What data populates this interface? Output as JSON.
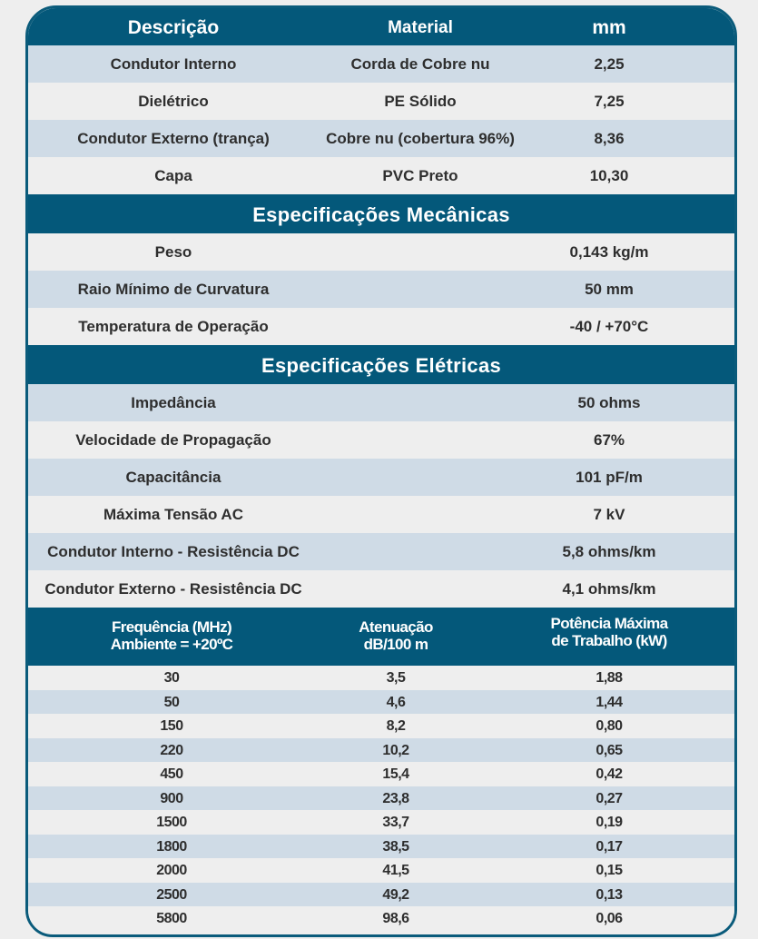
{
  "construction": {
    "headers": [
      "Descrição",
      "Material",
      "mm"
    ],
    "rows": [
      [
        "Condutor Interno",
        "Corda de Cobre nu",
        "2,25"
      ],
      [
        "Dielétrico",
        "PE Sólido",
        "7,25"
      ],
      [
        "Condutor Externo (trança)",
        "Cobre nu (cobertura 96%)",
        "8,36"
      ],
      [
        "Capa",
        "PVC Preto",
        "10,30"
      ]
    ]
  },
  "mechanical": {
    "title": "Especificações Mecânicas",
    "rows": [
      [
        "Peso",
        "0,143 kg/m"
      ],
      [
        "Raio Mínimo de Curvatura",
        "50 mm"
      ],
      [
        "Temperatura de Operação",
        "-40 / +70°C"
      ]
    ]
  },
  "electrical": {
    "title": "Especificações Elétricas",
    "rows": [
      [
        "Impedância",
        "50 ohms"
      ],
      [
        "Velocidade de Propagação",
        "67%"
      ],
      [
        "Capacitância",
        "101 pF/m"
      ],
      [
        "Máxima Tensão AC",
        "7 kV"
      ],
      [
        "Condutor Interno - Resistência DC",
        "5,8 ohms/km"
      ],
      [
        "Condutor Externo - Resistência DC",
        "4,1 ohms/km"
      ]
    ]
  },
  "frequency": {
    "headers": [
      [
        "Frequência (MHz)",
        "Ambiente = +20ºC"
      ],
      [
        "Atenuação",
        "dB/100 m"
      ],
      [
        "Potência Máxima",
        "de Trabalho (kW)"
      ]
    ],
    "rows": [
      [
        "30",
        "3,5",
        "1,88"
      ],
      [
        "50",
        "4,6",
        "1,44"
      ],
      [
        "150",
        "8,2",
        "0,80"
      ],
      [
        "220",
        "10,2",
        "0,65"
      ],
      [
        "450",
        "15,4",
        "0,42"
      ],
      [
        "900",
        "23,8",
        "0,27"
      ],
      [
        "1500",
        "33,7",
        "0,19"
      ],
      [
        "1800",
        "38,5",
        "0,17"
      ],
      [
        "2000",
        "41,5",
        "0,15"
      ],
      [
        "2500",
        "49,2",
        "0,13"
      ],
      [
        "5800",
        "98,6",
        "0,06"
      ]
    ]
  }
}
